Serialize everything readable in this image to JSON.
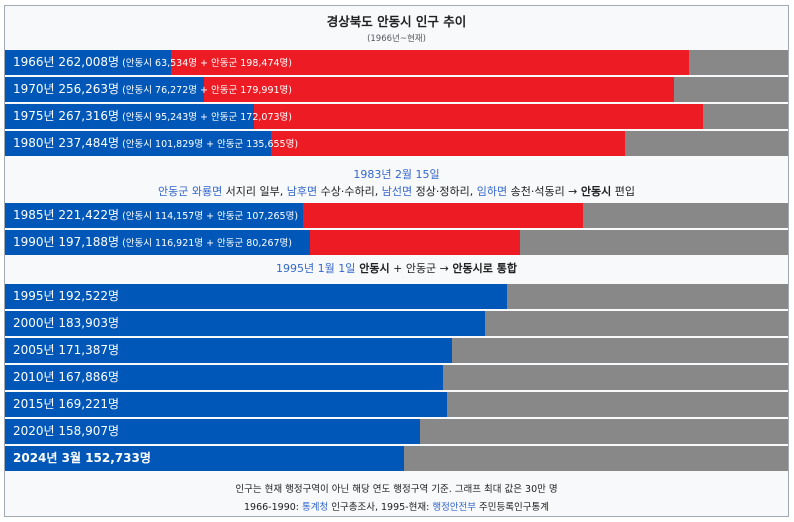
{
  "header": {
    "title": "경상북도 안동시 인구 추이",
    "subtitle": "(1966년~현재)"
  },
  "colors": {
    "andong_city": "#0057b8",
    "andong_gun": "#ed1c24",
    "remainder": "#888888",
    "link": "#3366cc"
  },
  "notes": {
    "note1_date": "1983년 2월 15일",
    "note1_parts": [
      {
        "text": "안동군 와룡면",
        "link": true
      },
      {
        "text": " 서지리 일부, ",
        "link": false
      },
      {
        "text": "남후면",
        "link": true
      },
      {
        "text": " 수상·수하리, ",
        "link": false
      },
      {
        "text": "남선면",
        "link": true
      },
      {
        "text": " 정상·정하리, ",
        "link": false
      },
      {
        "text": "임하면",
        "link": true
      },
      {
        "text": " 송천·석동리 → ",
        "link": false
      },
      {
        "text": "안동시",
        "link": false,
        "bold": true
      },
      {
        "text": " 편입",
        "link": false
      }
    ],
    "note2_date": "1995년 1월 1일",
    "note2_text_a": " 안동시",
    "note2_text_b": " + 안동군 → ",
    "note2_text_c": "안동시로 통합"
  },
  "footer": {
    "line1": "인구는 현재 행정구역이 아닌 해당 연도 행정구역 기준. 그래프 최대 값은 30만 명",
    "line2_a": "1966-1990: ",
    "line2_link1": "통계청",
    "line2_b": " 인구총조사, 1995-현재: ",
    "line2_link2": "행정안전부",
    "line2_c": " 주민등록인구통계"
  },
  "chart_data": {
    "type": "bar",
    "orientation": "horizontal",
    "stacked": true,
    "title": "경상북도 안동시 인구 추이",
    "subtitle": "(1966년~현재)",
    "xlim": [
      0,
      300000
    ],
    "rows": [
      {
        "label": "1966년 262,008명",
        "detail": "(안동시 63,534명 + 안동군 198,474명)",
        "total": 262008,
        "city": 63534,
        "gun": 198474,
        "bold": false
      },
      {
        "label": "1970년 256,263명",
        "detail": "(안동시 76,272명 + 안동군 179,991명)",
        "total": 256263,
        "city": 76272,
        "gun": 179991,
        "bold": false
      },
      {
        "label": "1975년 267,316명",
        "detail": "(안동시 95,243명 + 안동군 172,073명)",
        "total": 267316,
        "city": 95243,
        "gun": 172073,
        "bold": false
      },
      {
        "label": "1980년 237,484명",
        "detail": "(안동시 101,829명 + 안동군 135,655명)",
        "total": 237484,
        "city": 101829,
        "gun": 135655,
        "bold": false
      },
      {
        "label": "1985년 221,422명",
        "detail": "(안동시 114,157명 + 안동군 107,265명)",
        "total": 221422,
        "city": 114157,
        "gun": 107265,
        "bold": false
      },
      {
        "label": "1990년 197,188명",
        "detail": "(안동시 116,921명 + 안동군 80,267명)",
        "total": 197188,
        "city": 116921,
        "gun": 80267,
        "bold": false
      },
      {
        "label": "1995년 192,522명",
        "detail": "",
        "total": 192522,
        "city": 192522,
        "gun": 0,
        "bold": false
      },
      {
        "label": "2000년 183,903명",
        "detail": "",
        "total": 183903,
        "city": 183903,
        "gun": 0,
        "bold": false
      },
      {
        "label": "2005년 171,387명",
        "detail": "",
        "total": 171387,
        "city": 171387,
        "gun": 0,
        "bold": false
      },
      {
        "label": "2010년 167,886명",
        "detail": "",
        "total": 167886,
        "city": 167886,
        "gun": 0,
        "bold": false
      },
      {
        "label": "2015년 169,221명",
        "detail": "",
        "total": 169221,
        "city": 169221,
        "gun": 0,
        "bold": false
      },
      {
        "label": "2020년 158,907명",
        "detail": "",
        "total": 158907,
        "city": 158907,
        "gun": 0,
        "bold": false
      },
      {
        "label": "2024년 3월 152,733명",
        "detail": "",
        "total": 152733,
        "city": 152733,
        "gun": 0,
        "bold": true
      }
    ]
  }
}
